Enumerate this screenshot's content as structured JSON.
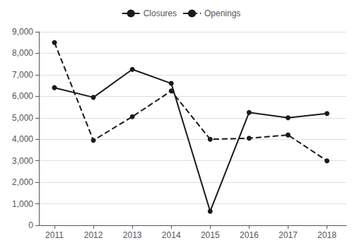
{
  "chart_data": {
    "type": "line",
    "x": [
      2011,
      2012,
      2013,
      2014,
      2015,
      2016,
      2017,
      2018
    ],
    "series": [
      {
        "name": "Closures",
        "color": "#1a1a1a",
        "line_style": "solid",
        "marker": "circle",
        "values": [
          6400,
          5950,
          7250,
          6600,
          650,
          5250,
          5000,
          5200
        ]
      },
      {
        "name": "Openings",
        "color": "#1a1a1a",
        "line_style": "dashed",
        "marker": "circle",
        "values": [
          8500,
          3950,
          5050,
          6250,
          4000,
          4050,
          4200,
          3000
        ]
      }
    ],
    "xlim": [
      2010.6,
      2018.5
    ],
    "xticks": [
      2011,
      2012,
      2013,
      2014,
      2015,
      2016,
      2017,
      2018
    ],
    "ylim": [
      0,
      9000
    ],
    "yticks": [
      0,
      {
        "value": 1000,
        "label": "1,000"
      },
      {
        "value": 2000,
        "label": "2,000"
      },
      {
        "value": 3000,
        "label": "3,000"
      },
      {
        "value": 4000,
        "label": "4,000"
      },
      {
        "value": 5000,
        "label": "5,000"
      },
      {
        "value": 6000,
        "label": "6,000"
      },
      {
        "value": 7000,
        "label": "7,000"
      },
      {
        "value": 8000,
        "label": "8,000"
      },
      {
        "value": 9000,
        "label": "9,000"
      }
    ],
    "grid": true,
    "legend": "top"
  }
}
